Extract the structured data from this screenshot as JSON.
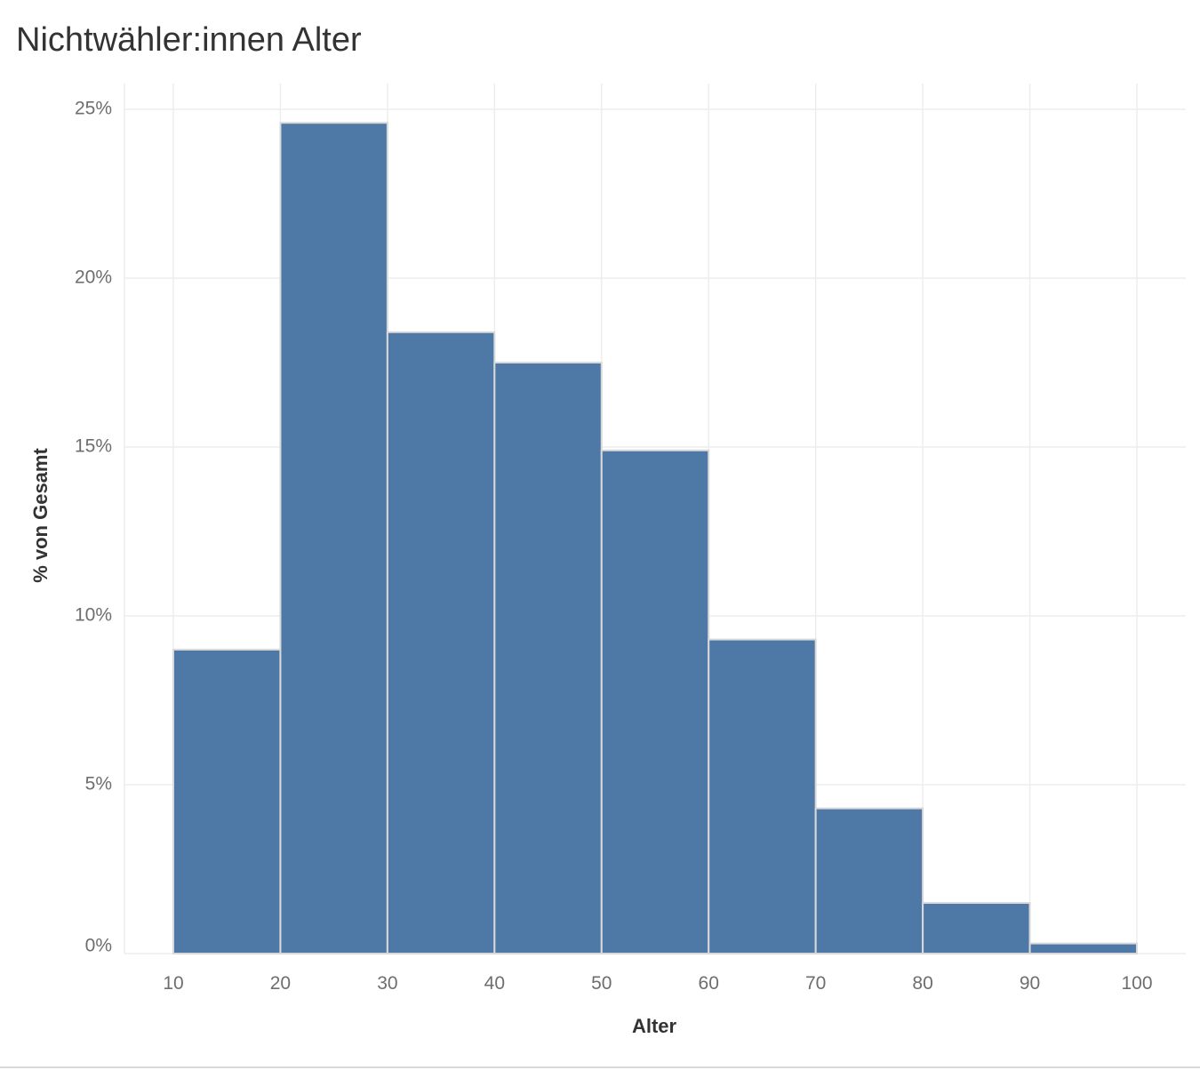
{
  "chart_data": {
    "type": "bar",
    "title": "Nichtwähler:innen Alter",
    "xlabel": "Alter",
    "ylabel": "% von Gesamt",
    "bins": [
      {
        "from": 10,
        "to": 20,
        "value": 9.0
      },
      {
        "from": 20,
        "to": 30,
        "value": 24.6
      },
      {
        "from": 30,
        "to": 40,
        "value": 18.4
      },
      {
        "from": 40,
        "to": 50,
        "value": 17.5
      },
      {
        "from": 50,
        "to": 60,
        "value": 14.9
      },
      {
        "from": 60,
        "to": 70,
        "value": 9.3
      },
      {
        "from": 70,
        "to": 80,
        "value": 4.3
      },
      {
        "from": 80,
        "to": 90,
        "value": 1.5
      },
      {
        "from": 90,
        "to": 100,
        "value": 0.3
      }
    ],
    "xlim": [
      10,
      100
    ],
    "ylim": [
      0,
      25
    ],
    "x_ticks": [
      10,
      20,
      30,
      40,
      50,
      60,
      70,
      80,
      90,
      100
    ],
    "x_tick_labels": [
      "10",
      "20",
      "30",
      "40",
      "50",
      "60",
      "70",
      "80",
      "90",
      "100"
    ],
    "y_ticks": [
      0,
      5,
      10,
      15,
      20,
      25
    ],
    "y_tick_labels": [
      "0%",
      "5%",
      "10%",
      "15%",
      "20%",
      "25%"
    ],
    "grid": true,
    "legend": "none",
    "colors": {
      "bar": "#4e79a7",
      "bar_outline": "#d9d9d9",
      "grid": "#ededed"
    }
  }
}
